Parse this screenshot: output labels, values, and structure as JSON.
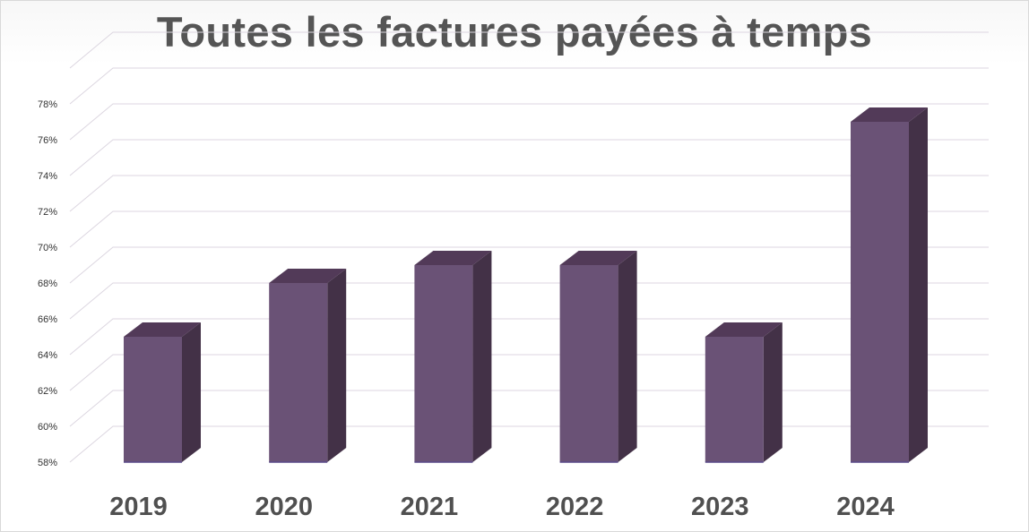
{
  "chart_data": {
    "type": "bar",
    "title": "Toutes les factures payées à temps",
    "xlabel": "",
    "ylabel": "",
    "categories": [
      "2019",
      "2020",
      "2021",
      "2022",
      "2023",
      "2024"
    ],
    "values": [
      65,
      68,
      69,
      69,
      65,
      77
    ],
    "value_format": "percent",
    "ylim": [
      58,
      80
    ],
    "yticks": [
      "58%",
      "60%",
      "62%",
      "64%",
      "66%",
      "68%",
      "70%",
      "72%",
      "74%",
      "76%",
      "78%"
    ],
    "grid": true,
    "legend": "none",
    "style": "3d-column",
    "colors": {
      "bar_front": "#6a5276",
      "bar_side": "#433147",
      "bar_top": "#523a58",
      "grid": "#dcd6e0",
      "title": "#555555"
    }
  }
}
